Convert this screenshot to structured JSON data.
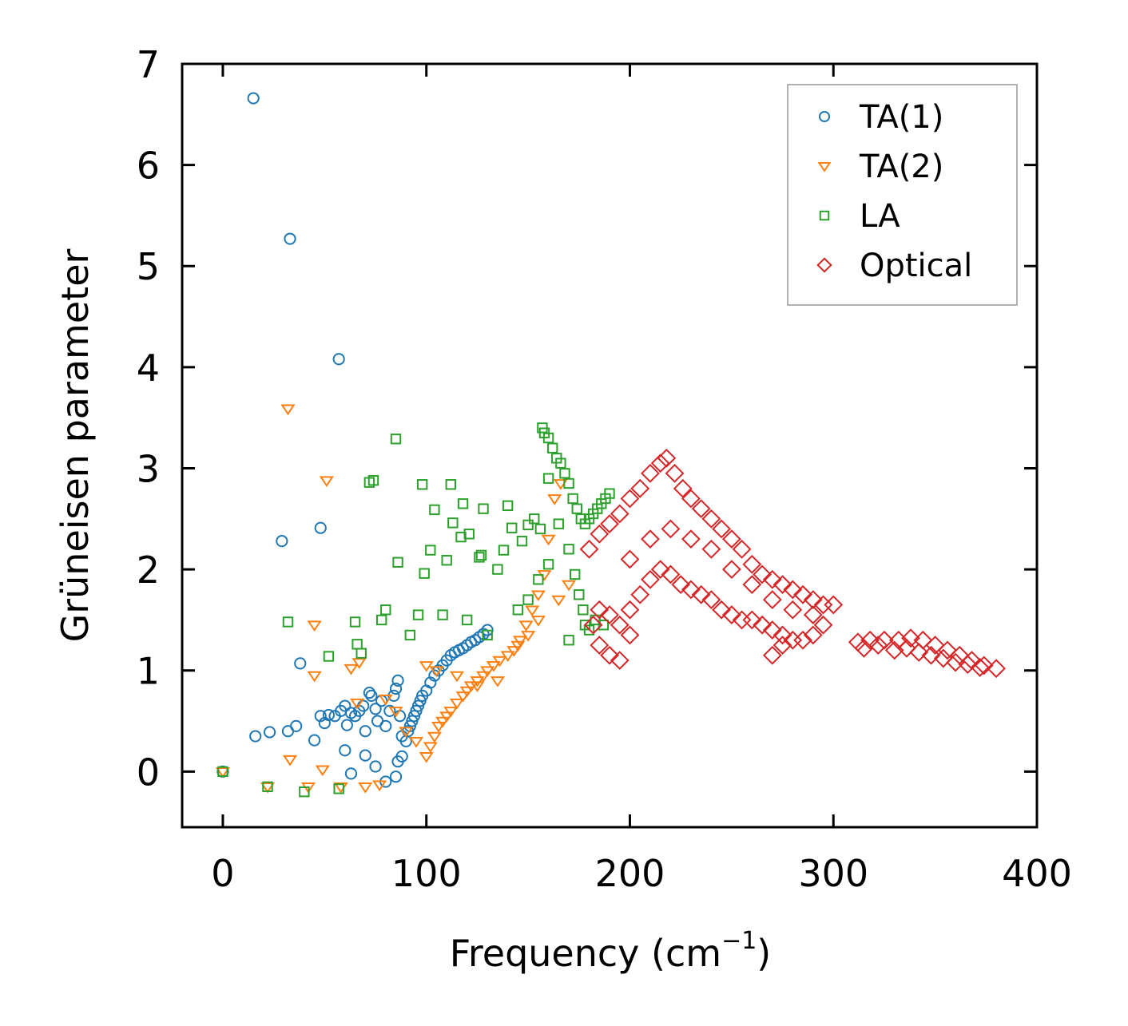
{
  "chart_data": {
    "type": "scatter",
    "title": "",
    "xlabel_main": "Frequency (cm",
    "xlabel_sup": "−1",
    "xlabel_close": ")",
    "ylabel": "Grüneisen parameter",
    "xlim": [
      -20,
      400
    ],
    "ylim": [
      -0.55,
      7.0
    ],
    "xticks": [
      "0",
      "100",
      "200",
      "300",
      "400"
    ],
    "yticks": [
      "0",
      "1",
      "2",
      "3",
      "4",
      "5",
      "6",
      "7"
    ],
    "legend_position": "top-right",
    "series": [
      {
        "name": "TA(1)",
        "marker": "circle",
        "color": "#1f77b4",
        "points": [
          [
            0,
            0
          ],
          [
            15,
            6.66
          ],
          [
            33,
            5.27
          ],
          [
            57,
            4.08
          ],
          [
            29,
            2.28
          ],
          [
            48,
            2.41
          ],
          [
            38,
            1.07
          ],
          [
            16,
            0.35
          ],
          [
            23,
            0.39
          ],
          [
            32,
            0.4
          ],
          [
            36,
            0.45
          ],
          [
            45,
            0.31
          ],
          [
            48,
            0.55
          ],
          [
            50,
            0.48
          ],
          [
            52,
            0.56
          ],
          [
            55,
            0.55
          ],
          [
            58,
            0.6
          ],
          [
            60,
            0.65
          ],
          [
            61,
            0.46
          ],
          [
            63,
            0.58
          ],
          [
            65,
            0.55
          ],
          [
            67,
            0.6
          ],
          [
            69,
            0.65
          ],
          [
            70,
            0.4
          ],
          [
            72,
            0.78
          ],
          [
            73,
            0.75
          ],
          [
            75,
            0.62
          ],
          [
            76,
            0.5
          ],
          [
            78,
            0.7
          ],
          [
            80,
            0.45
          ],
          [
            82,
            0.6
          ],
          [
            84,
            0.75
          ],
          [
            85,
            0.82
          ],
          [
            86,
            0.9
          ],
          [
            87,
            0.55
          ],
          [
            88,
            0.35
          ],
          [
            60,
            0.21
          ],
          [
            63,
            -0.02
          ],
          [
            70,
            0.16
          ],
          [
            75,
            0.05
          ],
          [
            80,
            -0.1
          ],
          [
            85,
            -0.05
          ],
          [
            86,
            0.1
          ],
          [
            88,
            0.15
          ],
          [
            90,
            0.3
          ],
          [
            91,
            0.4
          ],
          [
            92,
            0.45
          ],
          [
            93,
            0.5
          ],
          [
            94,
            0.55
          ],
          [
            95,
            0.6
          ],
          [
            96,
            0.65
          ],
          [
            97,
            0.7
          ],
          [
            98,
            0.75
          ],
          [
            100,
            0.8
          ],
          [
            102,
            0.88
          ],
          [
            104,
            0.95
          ],
          [
            106,
            1.0
          ],
          [
            108,
            1.05
          ],
          [
            110,
            1.1
          ],
          [
            112,
            1.15
          ],
          [
            114,
            1.18
          ],
          [
            116,
            1.2
          ],
          [
            118,
            1.22
          ],
          [
            120,
            1.25
          ],
          [
            122,
            1.28
          ],
          [
            124,
            1.3
          ],
          [
            126,
            1.33
          ],
          [
            128,
            1.36
          ],
          [
            130,
            1.4
          ]
        ]
      },
      {
        "name": "TA(2)",
        "marker": "triangle-down",
        "color": "#ff7f0e",
        "points": [
          [
            0,
            0
          ],
          [
            32,
            3.59
          ],
          [
            51,
            2.88
          ],
          [
            45,
            1.45
          ],
          [
            45,
            0.95
          ],
          [
            63,
            1.02
          ],
          [
            67,
            1.08
          ],
          [
            33,
            0.12
          ],
          [
            49,
            0.02
          ],
          [
            58,
            -0.15
          ],
          [
            22,
            -0.15
          ],
          [
            42,
            -0.15
          ],
          [
            70,
            -0.15
          ],
          [
            77,
            -0.13
          ],
          [
            66,
            0.68
          ],
          [
            80,
            0.72
          ],
          [
            85,
            0.6
          ],
          [
            90,
            0.4
          ],
          [
            95,
            0.3
          ],
          [
            100,
            0.15
          ],
          [
            102,
            0.25
          ],
          [
            104,
            0.35
          ],
          [
            106,
            0.45
          ],
          [
            108,
            0.5
          ],
          [
            110,
            0.55
          ],
          [
            112,
            0.6
          ],
          [
            115,
            0.68
          ],
          [
            118,
            0.75
          ],
          [
            120,
            0.8
          ],
          [
            122,
            0.85
          ],
          [
            125,
            0.9
          ],
          [
            128,
            0.95
          ],
          [
            130,
            1.0
          ],
          [
            133,
            1.05
          ],
          [
            136,
            1.1
          ],
          [
            140,
            1.15
          ],
          [
            143,
            1.2
          ],
          [
            146,
            1.3
          ],
          [
            149,
            1.45
          ],
          [
            152,
            1.6
          ],
          [
            155,
            1.75
          ],
          [
            158,
            1.95
          ],
          [
            160,
            2.3
          ],
          [
            163,
            2.7
          ],
          [
            166,
            2.85
          ],
          [
            100,
            1.05
          ],
          [
            105,
            1.0
          ],
          [
            115,
            0.95
          ],
          [
            125,
            0.85
          ],
          [
            135,
            0.9
          ],
          [
            145,
            1.25
          ],
          [
            150,
            1.35
          ],
          [
            155,
            1.5
          ],
          [
            165,
            1.7
          ],
          [
            170,
            1.85
          ]
        ]
      },
      {
        "name": "LA",
        "marker": "square",
        "color": "#2ca02c",
        "points": [
          [
            0,
            0
          ],
          [
            32,
            1.48
          ],
          [
            65,
            1.48
          ],
          [
            52,
            1.14
          ],
          [
            66,
            1.26
          ],
          [
            68,
            1.17
          ],
          [
            72,
            2.86
          ],
          [
            74,
            2.88
          ],
          [
            85,
            3.29
          ],
          [
            98,
            2.84
          ],
          [
            112,
            2.84
          ],
          [
            128,
            2.6
          ],
          [
            140,
            2.63
          ],
          [
            118,
            2.65
          ],
          [
            104,
            2.59
          ],
          [
            86,
            2.07
          ],
          [
            102,
            2.19
          ],
          [
            99,
            1.96
          ],
          [
            110,
            2.09
          ],
          [
            126,
            2.12
          ],
          [
            121,
            2.35
          ],
          [
            117,
            2.32
          ],
          [
            113,
            2.46
          ],
          [
            127,
            2.14
          ],
          [
            135,
            2.0
          ],
          [
            138,
            2.19
          ],
          [
            142,
            2.41
          ],
          [
            147,
            2.28
          ],
          [
            150,
            2.44
          ],
          [
            153,
            2.5
          ],
          [
            156,
            2.4
          ],
          [
            157,
            3.4
          ],
          [
            158,
            3.35
          ],
          [
            160,
            3.3
          ],
          [
            162,
            3.2
          ],
          [
            164,
            3.1
          ],
          [
            166,
            3.05
          ],
          [
            168,
            2.95
          ],
          [
            170,
            2.85
          ],
          [
            172,
            2.7
          ],
          [
            174,
            2.6
          ],
          [
            176,
            2.5
          ],
          [
            178,
            2.45
          ],
          [
            180,
            2.5
          ],
          [
            182,
            2.55
          ],
          [
            184,
            2.6
          ],
          [
            186,
            2.65
          ],
          [
            188,
            2.7
          ],
          [
            190,
            2.75
          ],
          [
            160,
            2.9
          ],
          [
            165,
            2.45
          ],
          [
            170,
            2.2
          ],
          [
            173,
            1.95
          ],
          [
            175,
            1.75
          ],
          [
            177,
            1.6
          ],
          [
            178,
            1.45
          ],
          [
            180,
            1.4
          ],
          [
            183,
            1.5
          ],
          [
            187,
            1.45
          ],
          [
            170,
            1.3
          ],
          [
            145,
            1.6
          ],
          [
            150,
            1.7
          ],
          [
            155,
            1.9
          ],
          [
            160,
            2.05
          ],
          [
            130,
            1.35
          ],
          [
            120,
            1.5
          ],
          [
            108,
            1.55
          ],
          [
            96,
            1.55
          ],
          [
            92,
            1.35
          ],
          [
            78,
            1.5
          ],
          [
            80,
            1.6
          ],
          [
            22,
            -0.15
          ],
          [
            40,
            -0.2
          ],
          [
            57,
            -0.17
          ]
        ]
      },
      {
        "name": "Optical",
        "marker": "diamond",
        "color": "#d62728",
        "points": [
          [
            180,
            2.2
          ],
          [
            185,
            2.35
          ],
          [
            190,
            2.45
          ],
          [
            195,
            2.55
          ],
          [
            200,
            2.7
          ],
          [
            205,
            2.8
          ],
          [
            210,
            2.95
          ],
          [
            215,
            3.05
          ],
          [
            218,
            3.1
          ],
          [
            222,
            2.95
          ],
          [
            226,
            2.8
          ],
          [
            230,
            2.7
          ],
          [
            235,
            2.6
          ],
          [
            240,
            2.5
          ],
          [
            245,
            2.4
          ],
          [
            250,
            2.3
          ],
          [
            255,
            2.2
          ],
          [
            260,
            2.05
          ],
          [
            265,
            1.95
          ],
          [
            270,
            1.9
          ],
          [
            275,
            1.85
          ],
          [
            280,
            1.8
          ],
          [
            285,
            1.75
          ],
          [
            290,
            1.7
          ],
          [
            295,
            1.65
          ],
          [
            300,
            1.65
          ],
          [
            185,
            1.6
          ],
          [
            190,
            1.55
          ],
          [
            195,
            1.45
          ],
          [
            200,
            1.6
          ],
          [
            205,
            1.75
          ],
          [
            210,
            1.9
          ],
          [
            215,
            2.0
          ],
          [
            220,
            1.95
          ],
          [
            225,
            1.85
          ],
          [
            230,
            1.8
          ],
          [
            235,
            1.75
          ],
          [
            240,
            1.7
          ],
          [
            245,
            1.6
          ],
          [
            250,
            1.55
          ],
          [
            255,
            1.5
          ],
          [
            260,
            1.5
          ],
          [
            265,
            1.45
          ],
          [
            270,
            1.4
          ],
          [
            275,
            1.35
          ],
          [
            280,
            1.3
          ],
          [
            285,
            1.3
          ],
          [
            290,
            1.35
          ],
          [
            295,
            1.45
          ],
          [
            182,
            1.45
          ],
          [
            185,
            1.25
          ],
          [
            190,
            1.15
          ],
          [
            195,
            1.1
          ],
          [
            200,
            1.35
          ],
          [
            270,
            1.15
          ],
          [
            275,
            1.25
          ],
          [
            200,
            2.1
          ],
          [
            210,
            2.3
          ],
          [
            220,
            2.4
          ],
          [
            230,
            2.3
          ],
          [
            240,
            2.2
          ],
          [
            250,
            2.0
          ],
          [
            260,
            1.85
          ],
          [
            270,
            1.7
          ],
          [
            280,
            1.6
          ],
          [
            290,
            1.55
          ],
          [
            312,
            1.28
          ],
          [
            318,
            1.3
          ],
          [
            325,
            1.3
          ],
          [
            332,
            1.3
          ],
          [
            338,
            1.32
          ],
          [
            344,
            1.3
          ],
          [
            350,
            1.25
          ],
          [
            356,
            1.2
          ],
          [
            362,
            1.15
          ],
          [
            368,
            1.1
          ],
          [
            374,
            1.05
          ],
          [
            380,
            1.02
          ],
          [
            315,
            1.22
          ],
          [
            322,
            1.25
          ],
          [
            330,
            1.2
          ],
          [
            336,
            1.22
          ],
          [
            342,
            1.18
          ],
          [
            348,
            1.15
          ],
          [
            354,
            1.12
          ],
          [
            360,
            1.08
          ],
          [
            366,
            1.06
          ],
          [
            372,
            1.03
          ]
        ]
      }
    ]
  }
}
